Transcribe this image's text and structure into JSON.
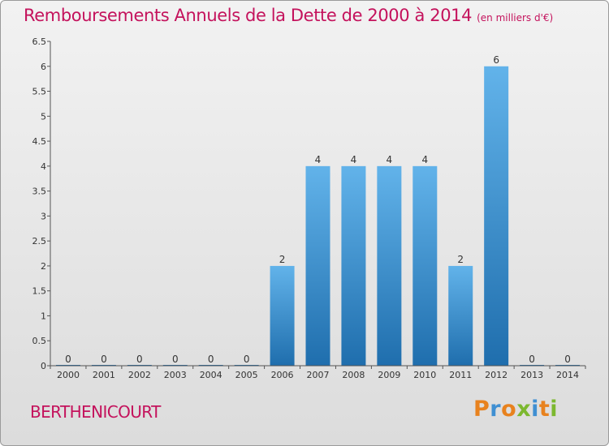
{
  "chart_data": {
    "type": "bar",
    "title": "Remboursements Annuels de la Dette de 2000 à 2014",
    "subtitle": "(en milliers d'€)",
    "categories": [
      "2000",
      "2001",
      "2002",
      "2003",
      "2004",
      "2005",
      "2006",
      "2007",
      "2008",
      "2009",
      "2010",
      "2011",
      "2012",
      "2013",
      "2014"
    ],
    "values": [
      0,
      0,
      0,
      0,
      0,
      0,
      2,
      4,
      4,
      4,
      4,
      2,
      6,
      0,
      0
    ],
    "value_labels": [
      "0",
      "0",
      "0",
      "0",
      "0",
      "0",
      "2",
      "4",
      "4",
      "4",
      "4",
      "2",
      "6",
      "0",
      "0"
    ],
    "y_ticks": [
      "0",
      "0.5",
      "1",
      "1.5",
      "2",
      "2.5",
      "3",
      "3.5",
      "4",
      "4.5",
      "5",
      "5.5",
      "6",
      "6.5"
    ],
    "ylim": [
      0,
      6.5
    ],
    "xlabel": "",
    "ylabel": "",
    "grid": false,
    "legend": "none"
  },
  "footer": {
    "town": "BERTHENICOURT",
    "brand": "Proxiti"
  },
  "colors": {
    "title": "#c4125c",
    "bar_top": "#62b3ea",
    "bar_bottom": "#1f6ead",
    "brand_letters": [
      "#e8821e",
      "#3f8fd2",
      "#e8821e",
      "#7cb82f",
      "#3f8fd2",
      "#e8821e",
      "#7cb82f"
    ]
  }
}
